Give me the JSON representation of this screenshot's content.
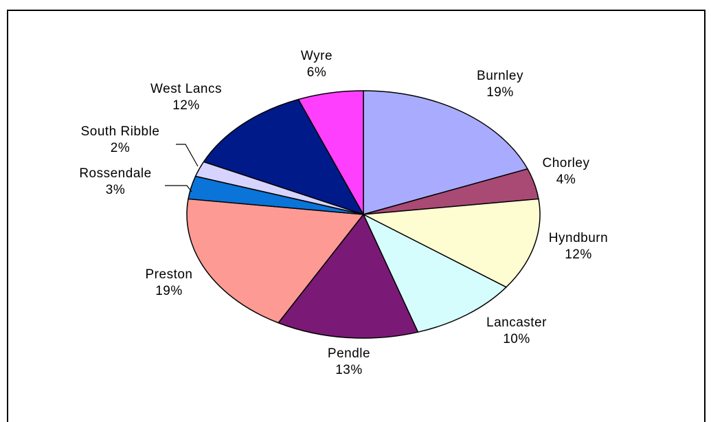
{
  "chart_data": {
    "type": "pie",
    "title": "",
    "slices": [
      {
        "label": "Burnley",
        "value": 19,
        "pct_label": "19%",
        "color": "#a9acfe"
      },
      {
        "label": "Chorley",
        "value": 4,
        "pct_label": "4%",
        "color": "#a94a74"
      },
      {
        "label": "Hyndburn",
        "value": 12,
        "pct_label": "12%",
        "color": "#fefdd2"
      },
      {
        "label": "Lancaster",
        "value": 10,
        "pct_label": "10%",
        "color": "#d6fdfe"
      },
      {
        "label": "Pendle",
        "value": 13,
        "pct_label": "13%",
        "color": "#7b1a76"
      },
      {
        "label": "Preston",
        "value": 19,
        "pct_label": "19%",
        "color": "#fe9a94"
      },
      {
        "label": "Rossendale",
        "value": 3,
        "pct_label": "3%",
        "color": "#0a74d8"
      },
      {
        "label": "South Ribble",
        "value": 2,
        "pct_label": "2%",
        "color": "#d6d4fe"
      },
      {
        "label": "West Lancs",
        "value": 12,
        "pct_label": "12%",
        "color": "#011a8a"
      },
      {
        "label": "Wyre",
        "value": 6,
        "pct_label": "6%",
        "color": "#fe3ffe"
      }
    ],
    "legend": "none",
    "start": "top",
    "direction": "clockwise"
  }
}
